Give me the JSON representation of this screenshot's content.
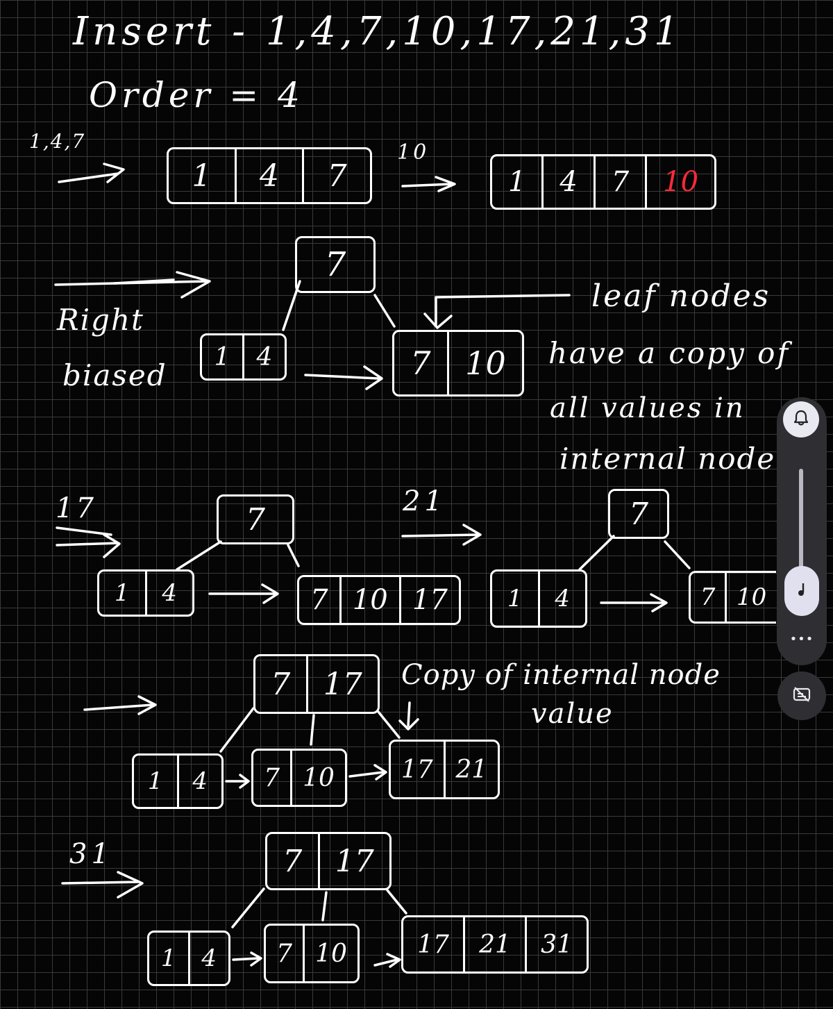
{
  "notes": {
    "insert_line": "Insert - 1,4,7,10,17,21,31",
    "order_line": "Order = 4",
    "step1_label": "1,4,7",
    "step2_label": "10",
    "right_biased_1": "Right",
    "right_biased_2": "biased",
    "leaf_note_1": "leaf nodes",
    "leaf_note_2": "have a copy of",
    "leaf_note_3": "all values in",
    "leaf_note_4": "internal node",
    "step_17_label": "17",
    "step_21_label": "21",
    "copy_note_1": "Copy of internal node",
    "copy_note_2": "value",
    "step_31_label": "31"
  },
  "nodes": {
    "n1": [
      "1",
      "4",
      "7"
    ],
    "n2": [
      "1",
      "4",
      "7",
      "10"
    ],
    "r1_root": [
      "7"
    ],
    "r1_left": [
      "1",
      "4"
    ],
    "r1_right": [
      "7",
      "10"
    ],
    "r2_root": [
      "7"
    ],
    "r2_left": [
      "1",
      "4"
    ],
    "r2_right": [
      "7",
      "10",
      "17"
    ],
    "r3_root": [
      "7"
    ],
    "r3_left": [
      "1",
      "4"
    ],
    "r3_right": [
      "7",
      "10"
    ],
    "r4_root": [
      "7",
      "17"
    ],
    "r4_left": [
      "1",
      "4"
    ],
    "r4_mid": [
      "7",
      "10"
    ],
    "r4_right": [
      "17",
      "21"
    ],
    "r5_root": [
      "7",
      "17"
    ],
    "r5_left": [
      "1",
      "4"
    ],
    "r5_mid": [
      "7",
      "10"
    ],
    "r5_right": [
      "17",
      "21",
      "31"
    ]
  },
  "colors": {
    "ink": "#ffffff",
    "highlight": "#ff2a3a",
    "background": "#050505",
    "grid": "#3a3a3a"
  },
  "controls": {
    "bell_icon": "bell-icon",
    "music_icon": "music-note-icon",
    "more_label": "•••",
    "caption_icon": "captions-off-icon"
  }
}
